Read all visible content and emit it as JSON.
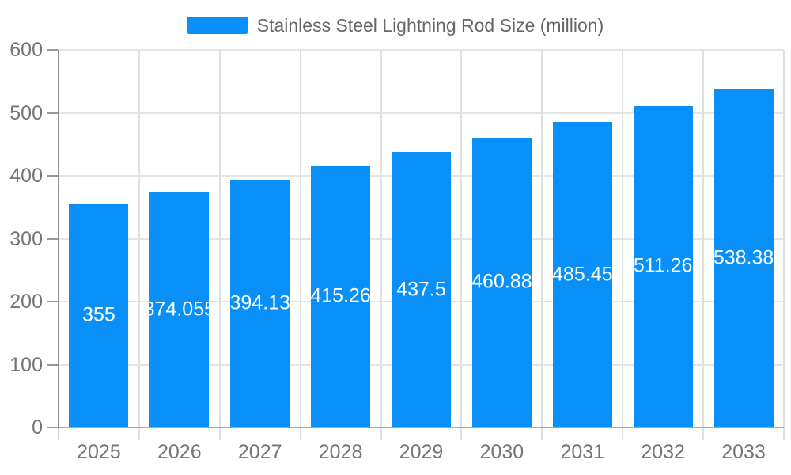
{
  "chart_data": {
    "type": "bar",
    "title": "Stainless Steel Lightning Rod Size (million)",
    "categories": [
      "2025",
      "2026",
      "2027",
      "2028",
      "2029",
      "2030",
      "2031",
      "2032",
      "2033"
    ],
    "values": [
      355,
      374.055,
      394.13,
      415.26,
      437.5,
      460.88,
      485.45,
      511.26,
      538.38
    ],
    "value_labels": [
      "355",
      "374.055",
      "394.13",
      "415.26",
      "437.5",
      "460.88",
      "485.45",
      "511.26",
      "538.38"
    ],
    "xlabel": "",
    "ylabel": "",
    "ylim": [
      0,
      600
    ],
    "y_ticks": [
      0,
      100,
      200,
      300,
      400,
      500,
      600
    ],
    "grid": "on",
    "legend_position": "top-center",
    "colors": {
      "bar": "#0990F8",
      "bar_value_label": "#ffffff",
      "title_text": "#666666",
      "axis_label_text": "#757575",
      "gridline": "#e4e4e4",
      "vertical_gridline": "#e0e0e0",
      "y_axis_line": "#8f8f8f",
      "x_axis_line": "#a6a6a6",
      "y_tick": "#999999",
      "x_tick_ext": "#cfcfcf",
      "background": "#ffffff"
    }
  }
}
